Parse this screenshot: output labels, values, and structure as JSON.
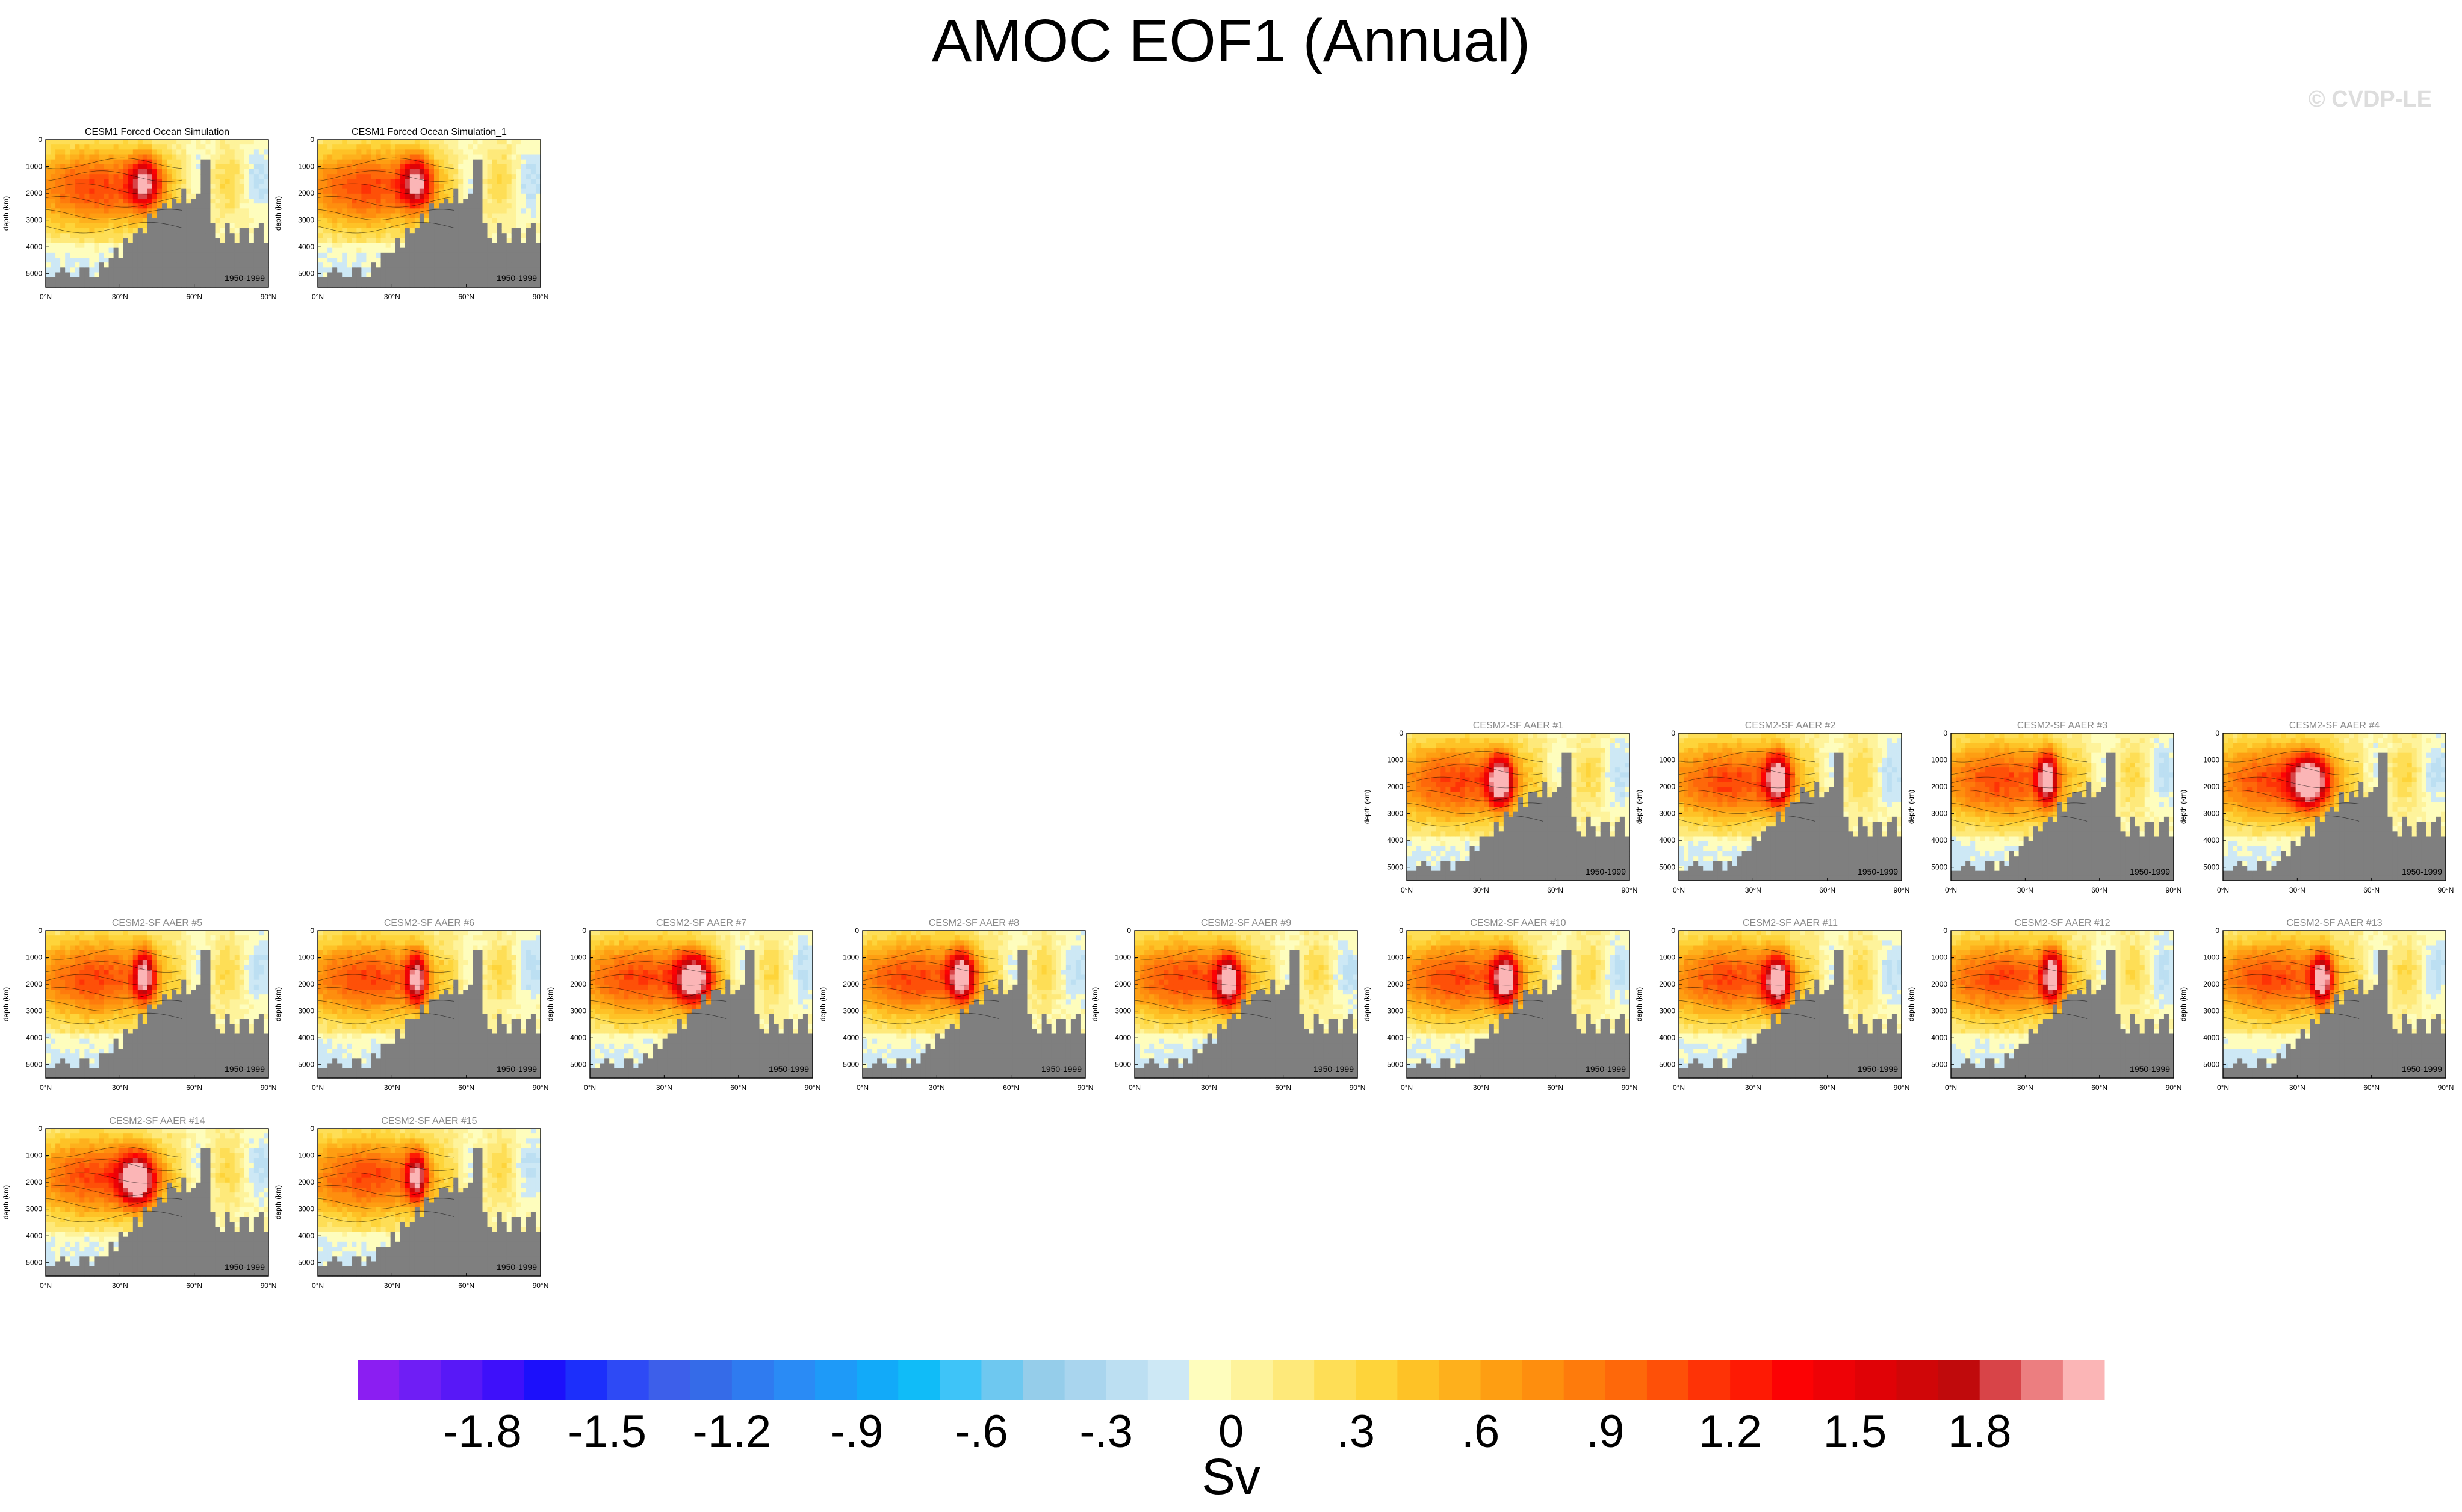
{
  "figure": {
    "title": "AMOC EOF1 (Annual)",
    "credit": "© CVDP-LE"
  },
  "chart_data": {
    "type": "heatmap",
    "description_units": "Sv",
    "xaxis": {
      "label": "",
      "ticks": [
        "0°N",
        "30°N",
        "60°N",
        "90°N"
      ],
      "range": [
        0,
        90
      ]
    },
    "yaxis": {
      "label": "depth (km)",
      "ticks": [
        "0",
        "1000",
        "2000",
        "3000",
        "4000",
        "5000"
      ],
      "range": [
        0,
        5500
      ]
    },
    "period": "1950-1999",
    "panels": [
      {
        "title": "CESM1 Forced Ocean Simulation",
        "title_color": "#000000",
        "row": 0,
        "col": 0,
        "core_lat": 40,
        "core_depth": 1600,
        "amp": 1.6,
        "width": 6
      },
      {
        "title": "CESM1 Forced Ocean Simulation_1",
        "title_color": "#000000",
        "row": 0,
        "col": 1,
        "core_lat": 40,
        "core_depth": 1600,
        "amp": 1.6,
        "width": 6
      },
      {
        "title": "CESM2-SF AAER #1",
        "title_color": "#888888",
        "row": 1,
        "col": 5,
        "core_lat": 38,
        "core_depth": 1800,
        "amp": 2.0,
        "width": 5
      },
      {
        "title": "CESM2-SF AAER #2",
        "title_color": "#888888",
        "row": 1,
        "col": 6,
        "core_lat": 40,
        "core_depth": 1700,
        "amp": 2.0,
        "width": 5
      },
      {
        "title": "CESM2-SF AAER #3",
        "title_color": "#888888",
        "row": 1,
        "col": 7,
        "core_lat": 39,
        "core_depth": 1700,
        "amp": 1.9,
        "width": 4
      },
      {
        "title": "CESM2-SF AAER #4",
        "title_color": "#888888",
        "row": 1,
        "col": 8,
        "core_lat": 35,
        "core_depth": 1800,
        "amp": 2.1,
        "width": 7
      },
      {
        "title": "CESM2-SF AAER #5",
        "title_color": "#888888",
        "row": 2,
        "col": 0,
        "core_lat": 40,
        "core_depth": 1700,
        "amp": 1.8,
        "width": 4
      },
      {
        "title": "CESM2-SF AAER #6",
        "title_color": "#888888",
        "row": 2,
        "col": 1,
        "core_lat": 40,
        "core_depth": 1800,
        "amp": 1.7,
        "width": 4
      },
      {
        "title": "CESM2-SF AAER #7",
        "title_color": "#888888",
        "row": 2,
        "col": 2,
        "core_lat": 42,
        "core_depth": 1800,
        "amp": 2.1,
        "width": 7
      },
      {
        "title": "CESM2-SF AAER #8",
        "title_color": "#888888",
        "row": 2,
        "col": 3,
        "core_lat": 40,
        "core_depth": 1700,
        "amp": 2.0,
        "width": 5
      },
      {
        "title": "CESM2-SF AAER #9",
        "title_color": "#888888",
        "row": 2,
        "col": 4,
        "core_lat": 38,
        "core_depth": 1900,
        "amp": 1.9,
        "width": 5
      },
      {
        "title": "CESM2-SF AAER #10",
        "title_color": "#888888",
        "row": 2,
        "col": 5,
        "core_lat": 40,
        "core_depth": 1800,
        "amp": 2.0,
        "width": 5
      },
      {
        "title": "CESM2-SF AAER #11",
        "title_color": "#888888",
        "row": 2,
        "col": 6,
        "core_lat": 40,
        "core_depth": 1900,
        "amp": 2.0,
        "width": 5
      },
      {
        "title": "CESM2-SF AAER #12",
        "title_color": "#888888",
        "row": 2,
        "col": 7,
        "core_lat": 41,
        "core_depth": 1700,
        "amp": 2.0,
        "width": 4
      },
      {
        "title": "CESM2-SF AAER #13",
        "title_color": "#888888",
        "row": 2,
        "col": 8,
        "core_lat": 40,
        "core_depth": 1800,
        "amp": 1.8,
        "width": 4
      },
      {
        "title": "CESM2-SF AAER #14",
        "title_color": "#888888",
        "row": 3,
        "col": 0,
        "core_lat": 37,
        "core_depth": 1900,
        "amp": 2.1,
        "width": 7
      },
      {
        "title": "CESM2-SF AAER #15",
        "title_color": "#888888",
        "row": 3,
        "col": 1,
        "core_lat": 40,
        "core_depth": 1800,
        "amp": 1.6,
        "width": 4
      }
    ],
    "colorbar": {
      "units": "Sv",
      "labels": [
        "-1.8",
        "-1.5",
        "-1.2",
        "-.9",
        "-.6",
        "-.3",
        "0",
        ".3",
        ".6",
        ".9",
        "1.2",
        "1.5",
        "1.8"
      ],
      "levels": [
        -2.1,
        -2.0,
        -1.9,
        -1.8,
        -1.7,
        -1.6,
        -1.5,
        -1.4,
        -1.3,
        -1.2,
        -1.1,
        -1.0,
        -0.9,
        -0.8,
        -0.7,
        -0.6,
        -0.5,
        -0.4,
        -0.3,
        -0.2,
        -0.1,
        0.0,
        0.1,
        0.2,
        0.3,
        0.4,
        0.5,
        0.6,
        0.7,
        0.8,
        0.9,
        1.0,
        1.1,
        1.2,
        1.3,
        1.4,
        1.5,
        1.6,
        1.7,
        1.8,
        1.9,
        2.0
      ],
      "colors": [
        "#8b1ef2",
        "#6f1ef5",
        "#5818f7",
        "#3e10fa",
        "#1c10fb",
        "#1c2ffb",
        "#2e4af5",
        "#3d5fea",
        "#356be8",
        "#2f7bf0",
        "#2a8bf5",
        "#1e9af8",
        "#12aaf9",
        "#10bcf8",
        "#3ec4f8",
        "#6ec8f0",
        "#95cdea",
        "#a9d5ee",
        "#bcdff2",
        "#cde8f5",
        "#fefdbd",
        "#fef39b",
        "#fee97a",
        "#fede56",
        "#fed43a",
        "#fec226",
        "#feb01c",
        "#fe9e12",
        "#fe8e0e",
        "#fe7b0c",
        "#fe680a",
        "#fe5008",
        "#fe3306",
        "#fe1a04",
        "#fc0204",
        "#ee0206",
        "#e00206",
        "#d00608",
        "#c00a0c",
        "#d84448",
        "#ec7e80",
        "#fbb5b6"
      ]
    }
  }
}
